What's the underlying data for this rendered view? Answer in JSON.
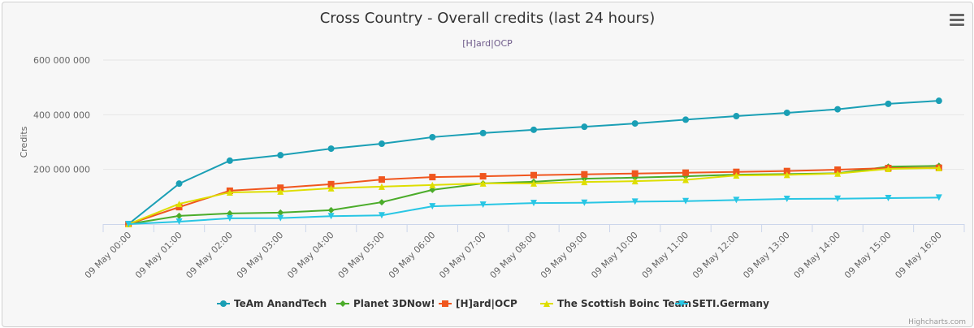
{
  "chart_data": {
    "type": "line",
    "title": "Cross Country - Overall credits (last 24 hours)",
    "subtitle": "[H]ard|OCP",
    "xlabel": "",
    "ylabel": "Credits",
    "ylim": [
      0,
      600000000
    ],
    "yticks": [
      0,
      200000000,
      400000000,
      600000000
    ],
    "ytick_labels": [
      "",
      "200 000 000",
      "400 000 000",
      "600 000 000"
    ],
    "grid": true,
    "legend": "bottom-center",
    "categories": [
      "09 May 00:00",
      "09 May 01:00",
      "09 May 02:00",
      "09 May 03:00",
      "09 May 04:00",
      "09 May 05:00",
      "09 May 06:00",
      "09 May 07:00",
      "09 May 08:00",
      "09 May 09:00",
      "09 May 10:00",
      "09 May 11:00",
      "09 May 12:00",
      "09 May 13:00",
      "09 May 14:00",
      "09 May 15:00",
      "09 May 16:00"
    ],
    "series": [
      {
        "name": "TeAm AnandTech",
        "color": "#1a9fb5",
        "marker": "circle",
        "values": [
          0,
          148,
          232,
          252,
          276,
          294,
          318,
          333,
          345,
          356,
          368,
          382,
          395,
          407,
          420,
          440,
          451
        ]
      },
      {
        "name": "Planet 3DNow!",
        "color": "#4bac2a",
        "marker": "diamond",
        "values": [
          0,
          30,
          39,
          42,
          51,
          80,
          125,
          149,
          155,
          166,
          170,
          175,
          181,
          183,
          186,
          210,
          213
        ]
      },
      {
        "name": "[H]ard|OCP",
        "color": "#f0561e",
        "marker": "square",
        "values": [
          0,
          62,
          122,
          133,
          146,
          163,
          172,
          175,
          179,
          182,
          185,
          188,
          191,
          194,
          199,
          205,
          206
        ]
      },
      {
        "name": "The Scottish Boinc Team",
        "color": "#dede00",
        "marker": "triangle",
        "values": [
          0,
          74,
          116,
          119,
          131,
          137,
          143,
          149,
          149,
          154,
          157,
          162,
          178,
          180,
          185,
          202,
          205
        ]
      },
      {
        "name": "SETI.Germany",
        "color": "#28c6e4",
        "marker": "triangle-down",
        "values": [
          0,
          9,
          21,
          22,
          29,
          32,
          65,
          71,
          77,
          78,
          82,
          84,
          88,
          92,
          93,
          95,
          97
        ]
      }
    ],
    "value_unit_multiplier": 1000000,
    "credits": "Highcharts.com"
  }
}
